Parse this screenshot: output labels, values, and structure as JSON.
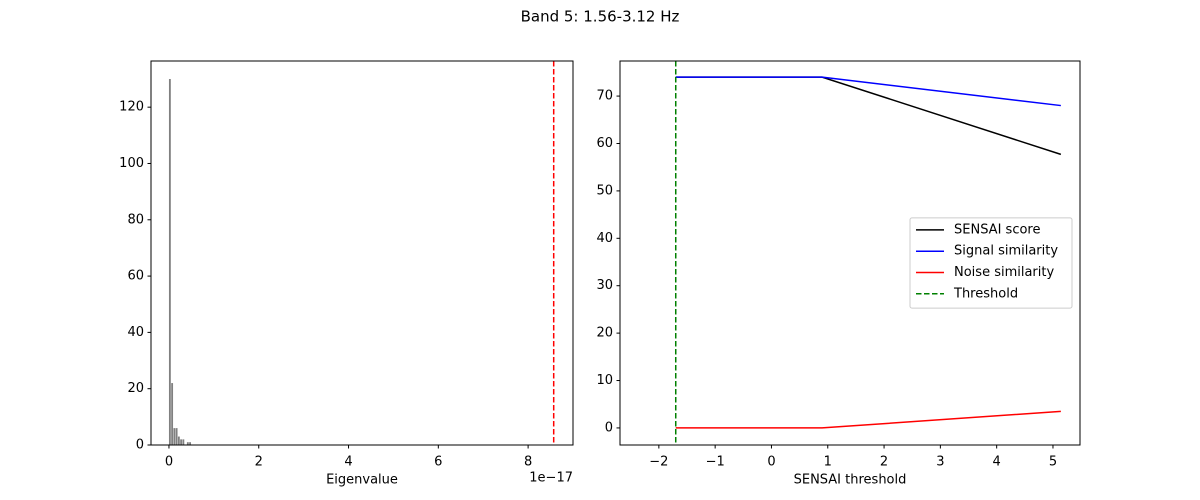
{
  "title": "Band 5: 1.56-3.12 Hz",
  "chart_data": [
    {
      "type": "histogram",
      "xlabel": "Eigenvalue",
      "x_offset_label": "1e−17",
      "bins": [
        0,
        0.05,
        0.1,
        0.15,
        0.2,
        0.25,
        0.3,
        0.35,
        0.4,
        0.45,
        0.5
      ],
      "values": [
        130,
        22,
        6,
        6,
        3,
        2,
        2,
        0,
        1,
        1
      ],
      "color": "#808080",
      "xlim": [
        -0.4,
        9.0
      ],
      "xticks": [
        0,
        2,
        4,
        6,
        8
      ],
      "ylim": [
        0,
        136.4
      ],
      "yticks": [
        0,
        20,
        40,
        60,
        80,
        100,
        120
      ],
      "vlines": [
        {
          "value": 8.57,
          "color": "#ff0000"
        }
      ]
    },
    {
      "type": "line",
      "xlabel": "SENSAI threshold",
      "x": [
        -1.7,
        0.9,
        5.14
      ],
      "series": [
        {
          "name": "SENSAI score",
          "color": "#000000",
          "values": [
            74,
            74,
            57.7
          ]
        },
        {
          "name": "Signal similarity",
          "color": "#0000ff",
          "values": [
            74,
            74,
            68
          ]
        },
        {
          "name": "Noise similarity",
          "color": "#ff0000",
          "values": [
            0,
            0,
            3.5
          ]
        }
      ],
      "vlines": [
        {
          "name": "Threshold",
          "value": -1.7,
          "color": "#008000"
        }
      ],
      "xlim": [
        -2.69,
        5.48
      ],
      "xticks": [
        {
          "value": -2,
          "label": "−2"
        },
        {
          "value": -1,
          "label": "−1"
        },
        0,
        1,
        2,
        3,
        4,
        5
      ],
      "ylim": [
        -3.6,
        77.4
      ],
      "yticks": [
        0,
        10,
        20,
        30,
        40,
        50,
        60,
        70
      ],
      "legend": "center right"
    }
  ]
}
